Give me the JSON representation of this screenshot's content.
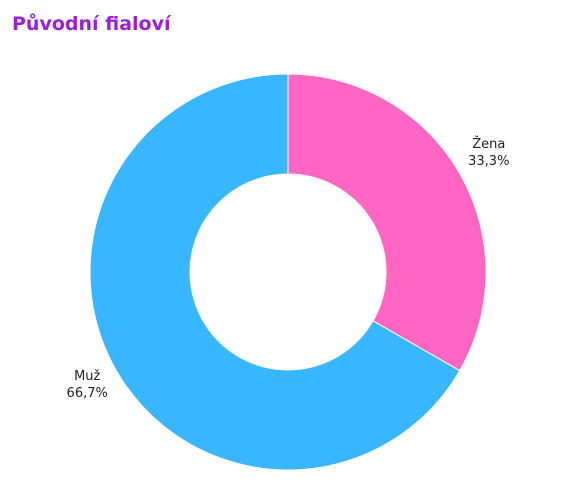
{
  "chart_data": {
    "type": "donut",
    "title": "Původní fialoví",
    "categories": [
      "Žena",
      "Muž"
    ],
    "values": [
      33.3,
      66.7
    ],
    "value_labels": [
      "33,3%",
      "66,7%"
    ],
    "colors": [
      "#ff66c4",
      "#38b6ff"
    ]
  }
}
